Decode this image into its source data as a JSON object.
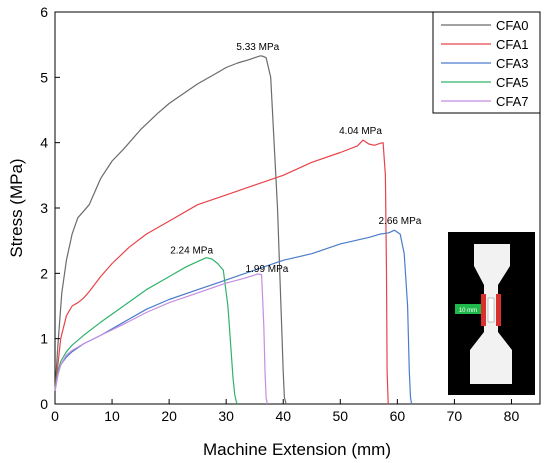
{
  "chart_data": {
    "type": "line",
    "xlabel": "Machine Extension (mm)",
    "ylabel": "Stress (MPa)",
    "xlim": [
      0,
      85
    ],
    "ylim": [
      0,
      6
    ],
    "xticks": [
      0,
      10,
      20,
      30,
      40,
      50,
      60,
      70,
      80
    ],
    "yticks": [
      0,
      1,
      2,
      3,
      4,
      5,
      6
    ],
    "grid": false,
    "legend_position": "top-right",
    "series": [
      {
        "name": "CFA0",
        "color": "#6b6b6b",
        "x": [
          0,
          0.5,
          1.2,
          2.0,
          3.0,
          4.0,
          5.0,
          6.0,
          8.0,
          10,
          12,
          15,
          18,
          20,
          22,
          25,
          28,
          30,
          32,
          34,
          35,
          36,
          36.5,
          37,
          37.8,
          38.4,
          39.0,
          39.4,
          39.8,
          40.0,
          40.2,
          40.5
        ],
        "y": [
          0.2,
          0.9,
          1.7,
          2.2,
          2.6,
          2.85,
          2.95,
          3.05,
          3.45,
          3.72,
          3.9,
          4.2,
          4.45,
          4.6,
          4.72,
          4.9,
          5.05,
          5.15,
          5.22,
          5.27,
          5.3,
          5.33,
          5.32,
          5.3,
          5.0,
          4.0,
          3.0,
          2.0,
          1.0,
          0.5,
          0.1,
          0
        ]
      },
      {
        "name": "CFA1",
        "color": "#e8434a",
        "x": [
          0,
          0.5,
          1.0,
          2.0,
          3.0,
          4.0,
          5.0,
          6.0,
          8.0,
          10,
          13,
          16,
          20,
          25,
          30,
          35,
          40,
          45,
          50,
          53,
          54,
          55,
          56,
          57,
          57.5,
          57.9,
          58.1,
          58.2,
          58.4
        ],
        "y": [
          0.2,
          0.6,
          1.0,
          1.35,
          1.5,
          1.55,
          1.62,
          1.72,
          1.95,
          2.15,
          2.4,
          2.6,
          2.8,
          3.05,
          3.2,
          3.35,
          3.5,
          3.7,
          3.85,
          3.95,
          4.04,
          3.98,
          3.96,
          3.99,
          4.0,
          3.5,
          2.0,
          0.5,
          0
        ]
      },
      {
        "name": "CFA3",
        "color": "#4a7cc9",
        "x": [
          0,
          0.5,
          1.0,
          2.0,
          3.0,
          5.0,
          8.0,
          12,
          16,
          20,
          25,
          30,
          35,
          40,
          45,
          50,
          55,
          57,
          58.5,
          59.5,
          60.5,
          61.2,
          61.8,
          62.1,
          62.3,
          62.5
        ],
        "y": [
          0.2,
          0.45,
          0.6,
          0.72,
          0.8,
          0.92,
          1.05,
          1.25,
          1.45,
          1.6,
          1.75,
          1.9,
          2.05,
          2.2,
          2.3,
          2.45,
          2.55,
          2.6,
          2.62,
          2.66,
          2.6,
          2.3,
          1.5,
          0.5,
          0.1,
          0
        ]
      },
      {
        "name": "CFA5",
        "color": "#2fb36b",
        "x": [
          0,
          0.5,
          1.0,
          2.0,
          3.0,
          5.0,
          8.0,
          12,
          16,
          20,
          23,
          25,
          26.5,
          27.5,
          28.5,
          29.5,
          30.3,
          30.8,
          31.2,
          31.5,
          31.8,
          32.0
        ],
        "y": [
          0.2,
          0.5,
          0.65,
          0.8,
          0.9,
          1.05,
          1.25,
          1.5,
          1.75,
          1.95,
          2.1,
          2.18,
          2.24,
          2.22,
          2.15,
          2.05,
          1.5,
          0.9,
          0.4,
          0.15,
          0.03,
          0
        ]
      },
      {
        "name": "CFA7",
        "color": "#c38ee0",
        "x": [
          0,
          0.5,
          1.0,
          2.0,
          3.0,
          5.0,
          8.0,
          12,
          16,
          20,
          25,
          30,
          33,
          34.5,
          35.5,
          36.2,
          36.6,
          36.8,
          37.0,
          37.2
        ],
        "y": [
          0.2,
          0.45,
          0.6,
          0.75,
          0.82,
          0.92,
          1.05,
          1.22,
          1.4,
          1.55,
          1.7,
          1.85,
          1.92,
          1.96,
          1.99,
          1.98,
          1.2,
          0.5,
          0.1,
          0
        ]
      }
    ],
    "annotations": [
      {
        "text": "5.33 MPa",
        "x": 36,
        "y": 5.33
      },
      {
        "text": "4.04 MPa",
        "x": 54,
        "y": 4.04
      },
      {
        "text": "2.66 MPa",
        "x": 59.5,
        "y": 2.66
      },
      {
        "text": "2.24 MPa",
        "x": 26.5,
        "y": 2.24
      },
      {
        "text": "1.99 MPa",
        "x": 35.5,
        "y": 1.99
      }
    ],
    "inset": {
      "description_label": "10 mm",
      "frame_color": "#000000",
      "specimen_color": "#f2f2f2",
      "highlight_color": "#d9302e",
      "label_color": "#1fb84a"
    }
  }
}
